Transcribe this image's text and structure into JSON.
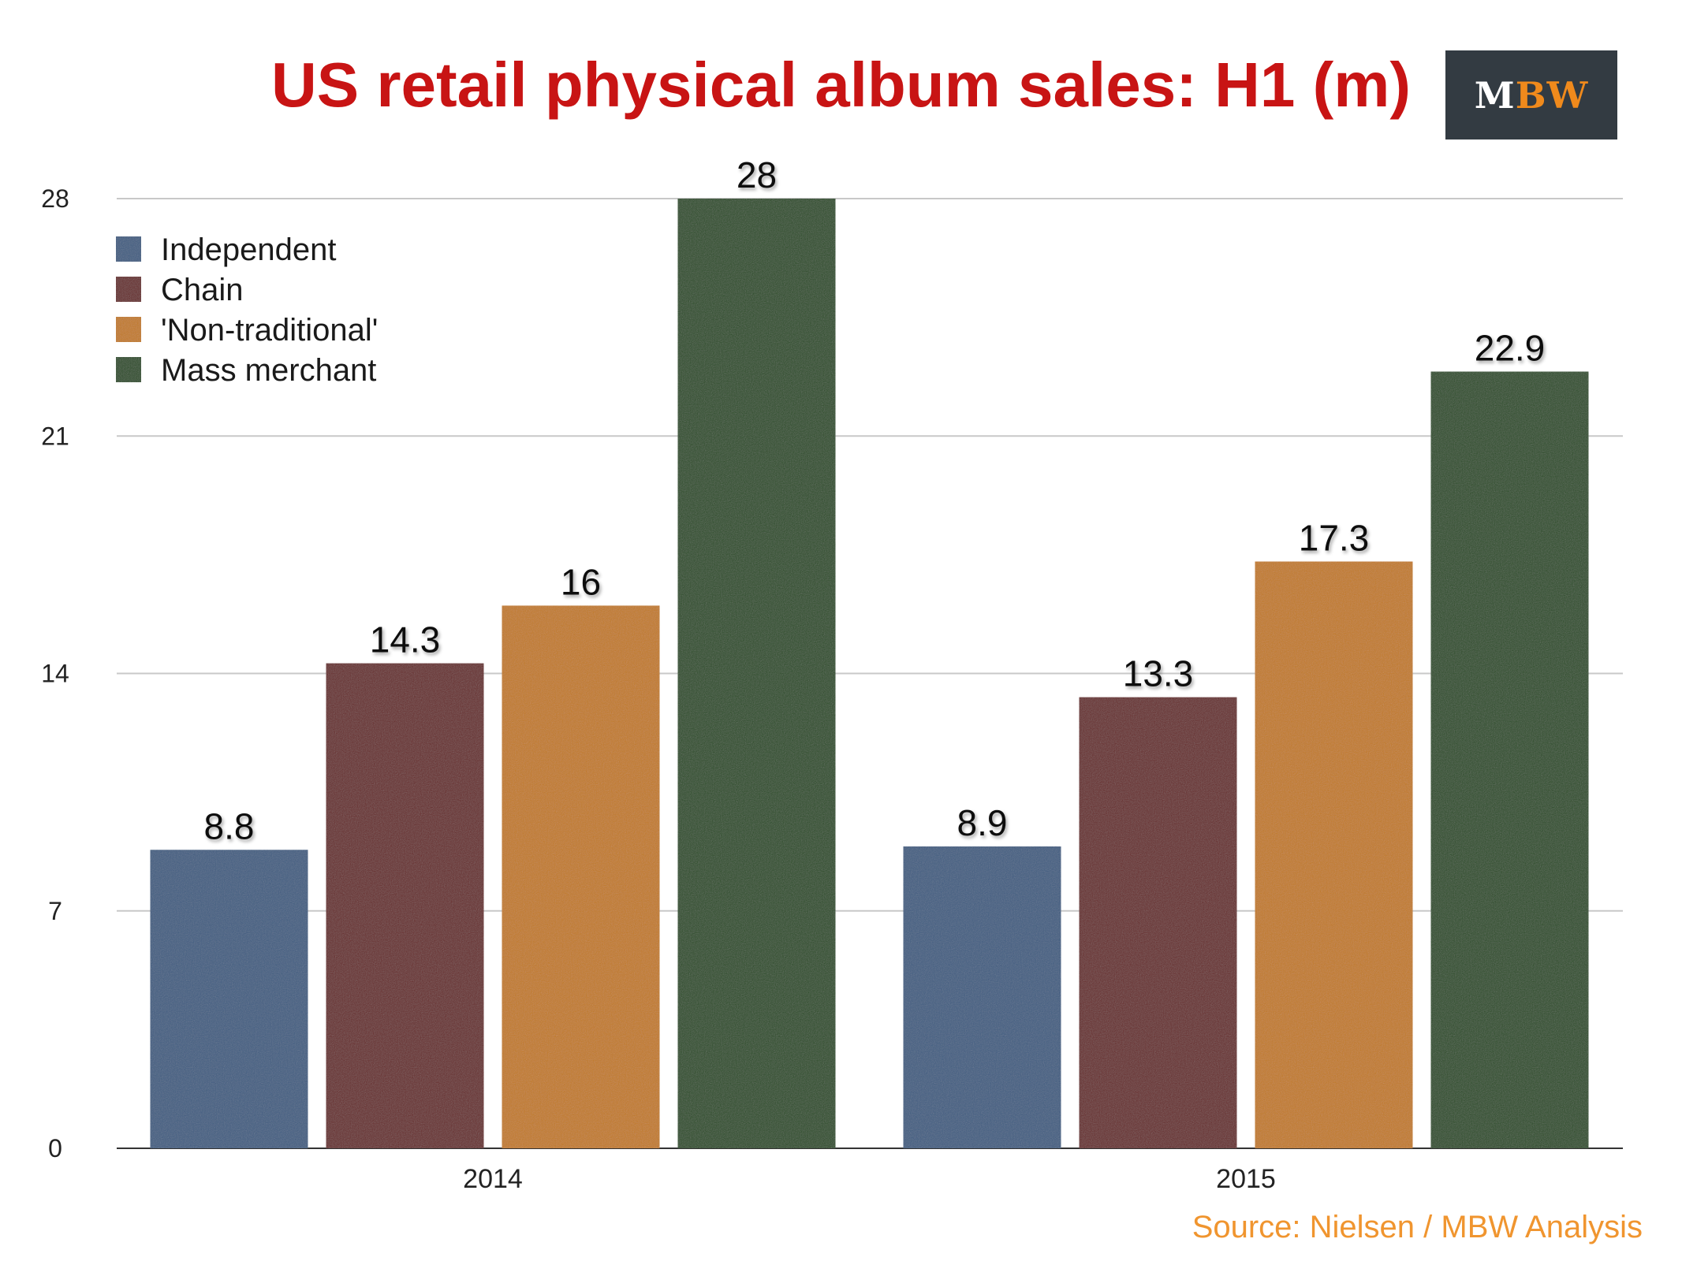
{
  "logo": {
    "m": "M",
    "bw": "BW"
  },
  "source": "Source: Nielsen / MBW Analysis",
  "chart_data": {
    "type": "bar",
    "title": "US retail physical album sales: H1 (m)",
    "xlabel": "",
    "ylabel": "",
    "categories": [
      "2014",
      "2015"
    ],
    "ylim": [
      0,
      28
    ],
    "yticks": [
      0,
      7,
      14,
      21,
      28
    ],
    "grid": true,
    "legend_position": "top-left",
    "series": [
      {
        "name": "Independent",
        "values": [
          8.8,
          8.9
        ],
        "labels": [
          "8.8",
          "8.9"
        ],
        "color": "#3f5d82"
      },
      {
        "name": "Chain",
        "values": [
          14.3,
          13.3
        ],
        "labels": [
          "14.3",
          "13.3"
        ],
        "color": "#672a2a"
      },
      {
        "name": "'Non-traditional'",
        "values": [
          16,
          17.3
        ],
        "labels": [
          "16",
          "17.3"
        ],
        "color": "#c27a22"
      },
      {
        "name": "Mass merchant",
        "values": [
          28,
          22.9
        ],
        "labels": [
          "28",
          "22.9"
        ],
        "color": "#2b4d27"
      }
    ]
  },
  "colors": {
    "title": "#c81414",
    "source": "#f0952f",
    "logo_background": "#333b42",
    "logo_accent": "#f08a1c"
  }
}
